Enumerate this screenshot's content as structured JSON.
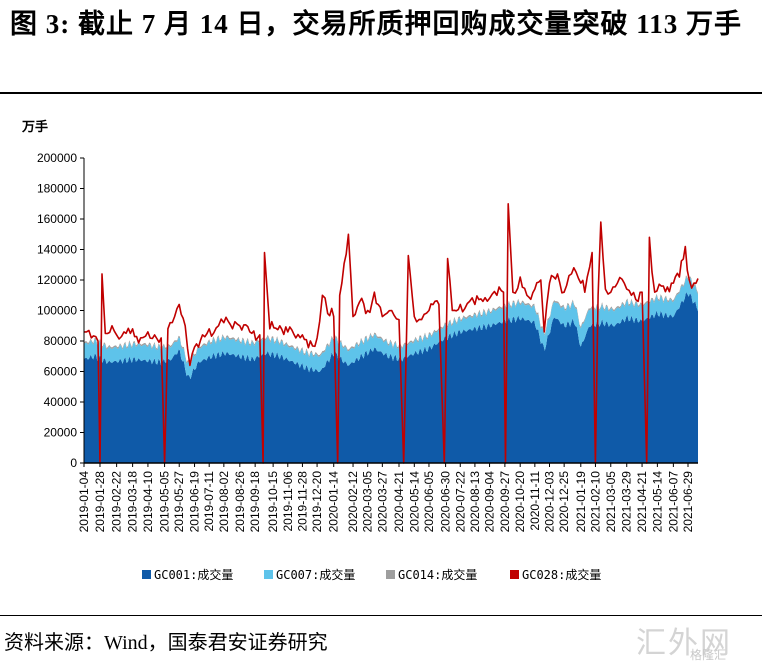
{
  "header": {
    "title": "图 3: 截止 7 月 14 日，交易所质押回购成交量突破 113 万手"
  },
  "footer": {
    "source": "资料来源：Wind，国泰君安证券研究"
  },
  "watermark": {
    "text": "汇外网",
    "sub": "格隆汇"
  },
  "chart_data": {
    "type": "area",
    "unit_label": "万手",
    "ylim": [
      0,
      200000
    ],
    "y_ticks": [
      0,
      20000,
      40000,
      60000,
      80000,
      100000,
      120000,
      140000,
      160000,
      180000,
      200000
    ],
    "x_ticks": [
      "2019-01-04",
      "2019-01-28",
      "2019-02-22",
      "2019-03-18",
      "2019-04-10",
      "2019-05-05",
      "2019-05-27",
      "2019-06-19",
      "2019-07-11",
      "2019-08-02",
      "2019-08-26",
      "2019-09-18",
      "2019-10-15",
      "2019-11-06",
      "2019-11-28",
      "2019-12-20",
      "2020-01-14",
      "2020-02-12",
      "2020-03-05",
      "2020-03-27",
      "2020-04-21",
      "2020-05-14",
      "2020-06-05",
      "2020-06-30",
      "2020-07-22",
      "2020-08-13",
      "2020-09-04",
      "2020-09-27",
      "2020-10-20",
      "2020-11-11",
      "2020-12-03",
      "2020-12-25",
      "2021-01-19",
      "2021-02-10",
      "2021-03-05",
      "2021-03-29",
      "2021-04-21",
      "2021-05-14",
      "2021-06-07",
      "2021-06-29"
    ],
    "grid": false,
    "legend_position": "bottom",
    "x_range": [
      "2019-01-04",
      "2021-07-14"
    ],
    "series": [
      {
        "name": "GC001:成交量",
        "color": "#0f5aa8",
        "kind": "stacked-area",
        "points": [
          [
            "2019-01-04",
            68000
          ],
          [
            "2019-01-20",
            70000
          ],
          [
            "2019-02-10",
            66000
          ],
          [
            "2019-03-01",
            67000
          ],
          [
            "2019-03-20",
            68000
          ],
          [
            "2019-04-10",
            67000
          ],
          [
            "2019-04-30",
            66000
          ],
          [
            "2019-05-15",
            68000
          ],
          [
            "2019-05-27",
            74000
          ],
          [
            "2019-06-10",
            55000
          ],
          [
            "2019-06-25",
            66000
          ],
          [
            "2019-07-15",
            70000
          ],
          [
            "2019-08-05",
            72000
          ],
          [
            "2019-08-25",
            70000
          ],
          [
            "2019-09-15",
            68000
          ],
          [
            "2019-10-05",
            72000
          ],
          [
            "2019-10-25",
            70000
          ],
          [
            "2019-11-15",
            66000
          ],
          [
            "2019-12-05",
            62000
          ],
          [
            "2019-12-25",
            60000
          ],
          [
            "2020-01-14",
            72000
          ],
          [
            "2020-02-05",
            64000
          ],
          [
            "2020-02-25",
            70000
          ],
          [
            "2020-03-15",
            75000
          ],
          [
            "2020-04-05",
            70000
          ],
          [
            "2020-04-25",
            68000
          ],
          [
            "2020-05-15",
            72000
          ],
          [
            "2020-06-05",
            75000
          ],
          [
            "2020-06-30",
            82000
          ],
          [
            "2020-07-22",
            86000
          ],
          [
            "2020-08-13",
            88000
          ],
          [
            "2020-09-04",
            90000
          ],
          [
            "2020-09-27",
            93000
          ],
          [
            "2020-10-20",
            95000
          ],
          [
            "2020-11-11",
            92000
          ],
          [
            "2020-11-25",
            74000
          ],
          [
            "2020-12-10",
            96000
          ],
          [
            "2020-12-25",
            90000
          ],
          [
            "2021-01-10",
            93000
          ],
          [
            "2021-01-19",
            76000
          ],
          [
            "2021-02-01",
            90000
          ],
          [
            "2021-02-20",
            92000
          ],
          [
            "2021-03-10",
            90000
          ],
          [
            "2021-03-29",
            95000
          ],
          [
            "2021-04-21",
            93000
          ],
          [
            "2021-05-14",
            98000
          ],
          [
            "2021-06-07",
            96000
          ],
          [
            "2021-06-29",
            112000
          ],
          [
            "2021-07-14",
            101000
          ]
        ]
      },
      {
        "name": "GC007:成交量",
        "color": "#5ec3ea",
        "kind": "stacked-area",
        "points": [
          [
            "2019-01-04",
            10000
          ],
          [
            "2019-02-22",
            9000
          ],
          [
            "2019-04-10",
            10000
          ],
          [
            "2019-05-27",
            8000
          ],
          [
            "2019-06-19",
            9000
          ],
          [
            "2019-08-02",
            10000
          ],
          [
            "2019-09-18",
            10000
          ],
          [
            "2019-11-06",
            9000
          ],
          [
            "2019-12-20",
            10000
          ],
          [
            "2020-01-14",
            10000
          ],
          [
            "2020-03-05",
            9000
          ],
          [
            "2020-04-21",
            8000
          ],
          [
            "2020-06-05",
            8000
          ],
          [
            "2020-07-22",
            8000
          ],
          [
            "2020-09-04",
            9000
          ],
          [
            "2020-10-20",
            10000
          ],
          [
            "2020-12-03",
            10000
          ],
          [
            "2021-01-19",
            12000
          ],
          [
            "2021-02-20",
            10000
          ],
          [
            "2021-03-29",
            10000
          ],
          [
            "2021-05-14",
            10000
          ],
          [
            "2021-06-29",
            10000
          ],
          [
            "2021-07-14",
            11000
          ]
        ]
      },
      {
        "name": "GC014:成交量",
        "color": "#9e9e9e",
        "kind": "stacked-area",
        "points": [
          [
            "2019-01-04",
            1000
          ],
          [
            "2021-07-14",
            1000
          ]
        ]
      },
      {
        "name": "GC028:成交量",
        "color": "#c00000",
        "kind": "line",
        "points": [
          [
            "2019-01-04",
            86000
          ],
          [
            "2019-01-15",
            82000
          ],
          [
            "2019-01-25",
            80000
          ],
          [
            "2019-01-28",
            0
          ],
          [
            "2019-01-31",
            124000
          ],
          [
            "2019-02-05",
            85000
          ],
          [
            "2019-02-15",
            90000
          ],
          [
            "2019-02-22",
            84000
          ],
          [
            "2019-03-05",
            86000
          ],
          [
            "2019-03-18",
            88000
          ],
          [
            "2019-03-30",
            82000
          ],
          [
            "2019-04-10",
            86000
          ],
          [
            "2019-04-20",
            84000
          ],
          [
            "2019-04-30",
            82000
          ],
          [
            "2019-05-05",
            0
          ],
          [
            "2019-05-10",
            88000
          ],
          [
            "2019-05-20",
            96000
          ],
          [
            "2019-05-27",
            104000
          ],
          [
            "2019-06-05",
            90000
          ],
          [
            "2019-06-12",
            64000
          ],
          [
            "2019-06-19",
            76000
          ],
          [
            "2019-07-01",
            84000
          ],
          [
            "2019-07-11",
            88000
          ],
          [
            "2019-07-25",
            90000
          ],
          [
            "2019-08-02",
            92000
          ],
          [
            "2019-08-15",
            88000
          ],
          [
            "2019-08-26",
            90000
          ],
          [
            "2019-09-10",
            86000
          ],
          [
            "2019-09-25",
            84000
          ],
          [
            "2019-09-30",
            0
          ],
          [
            "2019-10-02",
            138000
          ],
          [
            "2019-10-10",
            88000
          ],
          [
            "2019-10-25",
            90000
          ],
          [
            "2019-11-06",
            86000
          ],
          [
            "2019-11-18",
            82000
          ],
          [
            "2019-11-28",
            84000
          ],
          [
            "2019-12-10",
            80000
          ],
          [
            "2019-12-20",
            82000
          ],
          [
            "2019-12-28",
            110000
          ],
          [
            "2020-01-05",
            98000
          ],
          [
            "2020-01-14",
            96000
          ],
          [
            "2020-01-20",
            0
          ],
          [
            "2020-01-23",
            110000
          ],
          [
            "2020-02-05",
            150000
          ],
          [
            "2020-02-12",
            96000
          ],
          [
            "2020-02-25",
            108000
          ],
          [
            "2020-03-05",
            100000
          ],
          [
            "2020-03-15",
            112000
          ],
          [
            "2020-03-27",
            96000
          ],
          [
            "2020-04-10",
            100000
          ],
          [
            "2020-04-21",
            94000
          ],
          [
            "2020-04-28",
            0
          ],
          [
            "2020-05-05",
            136000
          ],
          [
            "2020-05-14",
            96000
          ],
          [
            "2020-05-25",
            94000
          ],
          [
            "2020-06-05",
            100000
          ],
          [
            "2020-06-20",
            104000
          ],
          [
            "2020-06-28",
            0
          ],
          [
            "2020-07-03",
            134000
          ],
          [
            "2020-07-10",
            100000
          ],
          [
            "2020-07-22",
            104000
          ],
          [
            "2020-08-05",
            106000
          ],
          [
            "2020-08-13",
            104000
          ],
          [
            "2020-08-25",
            106000
          ],
          [
            "2020-09-04",
            108000
          ],
          [
            "2020-09-15",
            110000
          ],
          [
            "2020-09-25",
            112000
          ],
          [
            "2020-09-28",
            0
          ],
          [
            "2020-10-02",
            170000
          ],
          [
            "2020-10-09",
            112000
          ],
          [
            "2020-10-20",
            122000
          ],
          [
            "2020-10-30",
            110000
          ],
          [
            "2020-11-11",
            114000
          ],
          [
            "2020-11-20",
            120000
          ],
          [
            "2020-11-25",
            86000
          ],
          [
            "2020-12-03",
            118000
          ],
          [
            "2020-12-15",
            124000
          ],
          [
            "2020-12-25",
            112000
          ],
          [
            "2021-01-05",
            124000
          ],
          [
            "2021-01-19",
            118000
          ],
          [
            "2021-01-25",
            112000
          ],
          [
            "2021-02-05",
            138000
          ],
          [
            "2021-02-10",
            0
          ],
          [
            "2021-02-14",
            110000
          ],
          [
            "2021-02-18",
            158000
          ],
          [
            "2021-02-25",
            114000
          ],
          [
            "2021-03-05",
            112000
          ],
          [
            "2021-03-15",
            118000
          ],
          [
            "2021-03-29",
            114000
          ],
          [
            "2021-04-05",
            110000
          ],
          [
            "2021-04-15",
            106000
          ],
          [
            "2021-04-21",
            112000
          ],
          [
            "2021-04-28",
            0
          ],
          [
            "2021-05-02",
            148000
          ],
          [
            "2021-05-10",
            112000
          ],
          [
            "2021-05-20",
            116000
          ],
          [
            "2021-06-07",
            118000
          ],
          [
            "2021-06-16",
            122000
          ],
          [
            "2021-06-25",
            142000
          ],
          [
            "2021-07-01",
            120000
          ],
          [
            "2021-07-08",
            118000
          ],
          [
            "2021-07-14",
            121000
          ]
        ]
      }
    ]
  }
}
